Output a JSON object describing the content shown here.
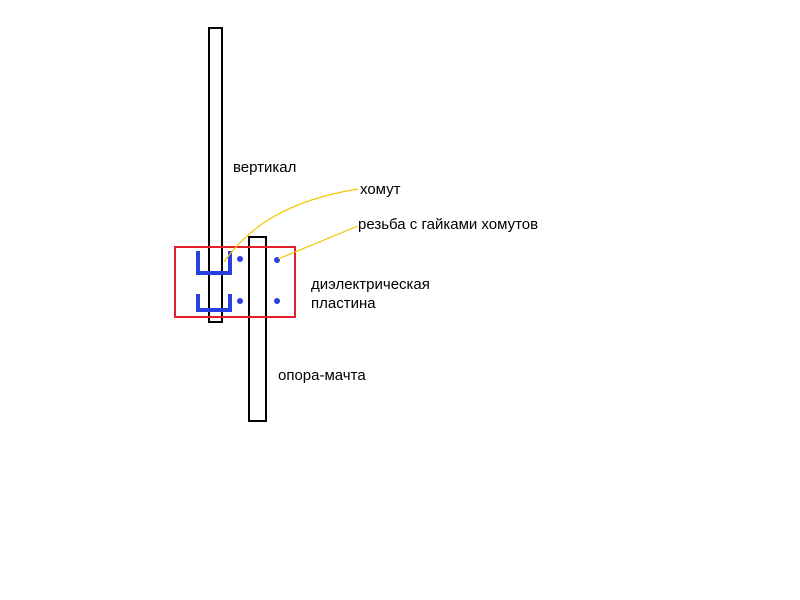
{
  "labels": {
    "vertical": "вертикал",
    "clamp": "хомут",
    "thread": "резьба с гайками хомутов",
    "plate_line1": "диэлектрическая",
    "plate_line2": "пластина",
    "mast": "опора-мачта"
  },
  "colors": {
    "outline": "#000000",
    "plate": "#e0202a",
    "clamp": "#2a3fe0",
    "leader": "#f2c400",
    "background": "#ffffff"
  }
}
